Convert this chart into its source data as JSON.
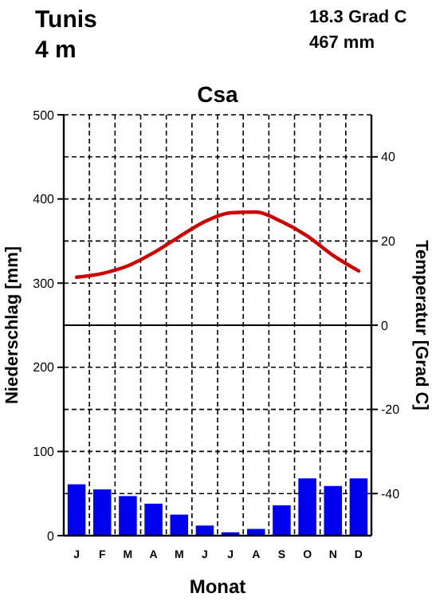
{
  "chart_data": {
    "type": "bar",
    "title": "Csa",
    "xlabel": "Monat",
    "ylabel": "Niederschlag [mm]",
    "y2label": "Temperatur [Grad C]",
    "annotations": [
      "Tunis",
      "4 m",
      "18.3 Grad C",
      "467 mm"
    ],
    "categories": [
      "J",
      "F",
      "M",
      "A",
      "M",
      "J",
      "J",
      "A",
      "S",
      "O",
      "N",
      "D"
    ],
    "series": [
      {
        "color": "#0000ee",
        "values": [
          61,
          55,
          47,
          38,
          25,
          12,
          4,
          8,
          36,
          68,
          59,
          68
        ]
      },
      {
        "type": "line",
        "axis": "y2",
        "color": "#cc0000",
        "values": [
          11.4,
          12.3,
          14.1,
          17.2,
          21,
          24.6,
          26.7,
          26.9,
          24.6,
          21.2,
          16.6,
          12.9
        ]
      }
    ],
    "ylim": [
      0,
      500
    ],
    "yticks": [
      0,
      100,
      200,
      300,
      400,
      500
    ],
    "y2lim": [
      -50,
      50
    ],
    "y2ticks": [
      -40,
      -20,
      0,
      20,
      40
    ],
    "ref_lines": [
      {
        "axis": "y2",
        "value": 0
      }
    ],
    "grid": true
  }
}
